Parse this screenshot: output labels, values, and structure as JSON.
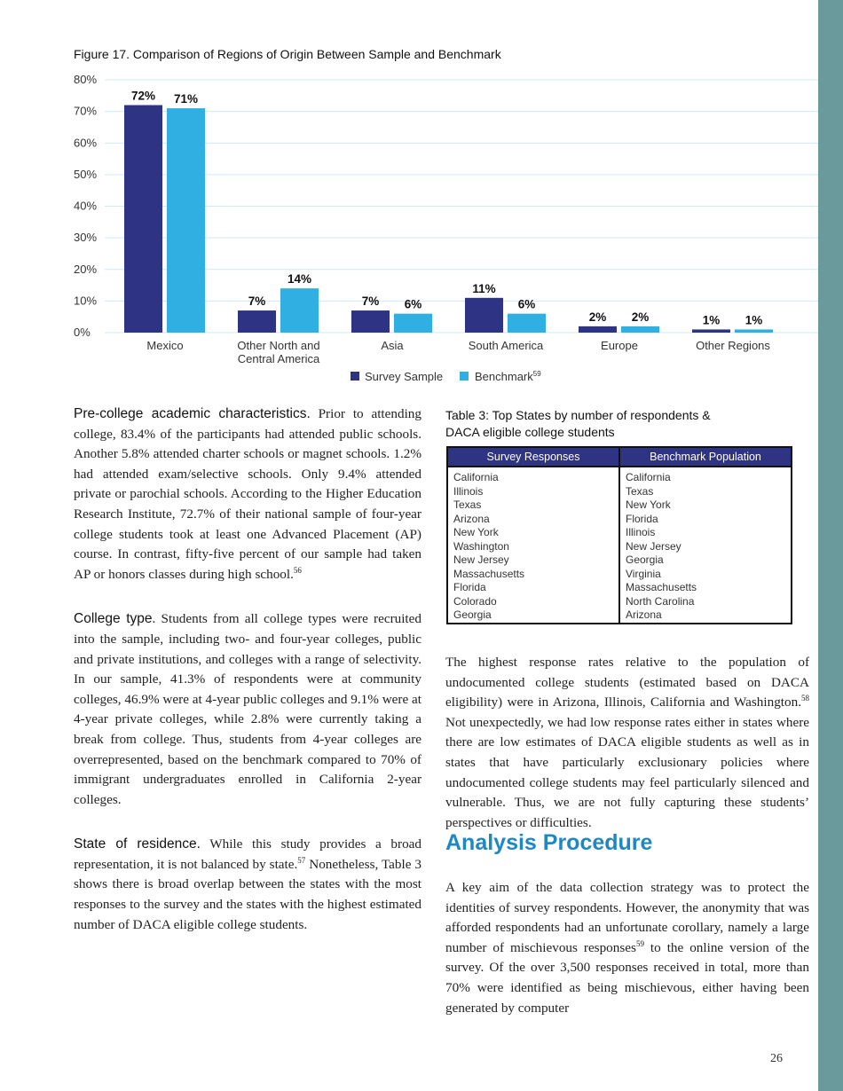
{
  "figure_title": "Figure 17. Comparison of Regions of Origin Between Sample and Benchmark",
  "chart_data": {
    "type": "bar",
    "title": "Figure 17. Comparison of Regions of Origin Between Sample and Benchmark",
    "categories": [
      "Mexico",
      "Other North and Central America",
      "Asia",
      "South America",
      "Europe",
      "Other Regions"
    ],
    "category_lines": [
      [
        "Mexico"
      ],
      [
        "Other North and",
        "Central America"
      ],
      [
        "Asia"
      ],
      [
        "South America"
      ],
      [
        "Europe"
      ],
      [
        "Other Regions"
      ]
    ],
    "series": [
      {
        "name": "Survey Sample",
        "values": [
          72,
          7,
          7,
          11,
          2,
          1
        ],
        "labels": [
          "72%",
          "7%",
          "7%",
          "11%",
          "2%",
          "1%"
        ],
        "color": "#2e3383"
      },
      {
        "name": "Benchmark",
        "name_sup": "59",
        "values": [
          71,
          14,
          6,
          6,
          2,
          1
        ],
        "labels": [
          "71%",
          "14%",
          "6%",
          "6%",
          "2%",
          "1%"
        ],
        "color": "#30b0e2"
      }
    ],
    "yticks": [
      "0%",
      "10%",
      "20%",
      "30%",
      "40%",
      "50%",
      "60%",
      "70%",
      "80%"
    ],
    "ylim": [
      0,
      80
    ],
    "grid": true,
    "legend": "bottom"
  },
  "left": {
    "p1": {
      "lead": "Pre-college academic characteristics.",
      "text": " Prior to attending college, 83.4% of the participants had attended public schools. Another 5.8% attended charter schools or magnet schools. 1.2% had attended exam/selective schools. Only 9.4% attended private or parochial schools. According to the Higher Education Research Institute, 72.7% of their national sample of four-year college students took at least one Advanced Placement (AP) course. In contrast, fifty-five percent of our sample had taken AP or honors classes during high school.",
      "sup": "56"
    },
    "p2": {
      "lead": "College type",
      "text": ". Students from all college types were recruited into the sample, including two- and four-year colleges, public and private institutions, and colleges with a range of selectivity. In our sample, 41.3% of respondents were at community colleges, 46.9% were at 4-year public colleges and 9.1% were at 4-year private colleges, while 2.8% were currently taking a break from college. Thus, students from 4-year colleges are overrepresented, based on the benchmark compared to 70% of immigrant undergraduates enrolled in California 2-year colleges."
    },
    "p3": {
      "lead": "State of residence.",
      "text1": " While this study provides a broad representation, it is not balanced by state.",
      "sup": "57",
      "text2": " Nonetheless, Table 3 shows there is broad overlap between the states with the most responses to the survey and the states with the highest estimated number of DACA eligible college students."
    }
  },
  "table": {
    "title_line1": "Table 3: Top States by number of respondents &",
    "title_line2": "DACA eligible college students",
    "headers": [
      "Survey Responses",
      "Benchmark Population"
    ],
    "survey": [
      "California",
      "Illinois",
      "Texas",
      "Arizona",
      "New York",
      "Washington",
      "New Jersey",
      "Massachusetts",
      "Florida",
      "Colorado",
      "Georgia"
    ],
    "benchmark": [
      "California",
      "Texas",
      "New York",
      "Florida",
      "Illinois",
      "New Jersey",
      "Georgia",
      "Virginia",
      "Massachusetts",
      "North Carolina",
      "Arizona"
    ]
  },
  "right": {
    "p1": {
      "text1": "The highest response rates relative to the population of undocumented college students (estimated based on DACA eligibility) were in Arizona, Illinois, California and Washington.",
      "sup": "58",
      "text2": " Not unexpectedly, we had low response rates either in states where there are low estimates of DACA eligible students as well as in states that have particularly exclusionary policies where undocumented college students may feel particularly silenced and vulnerable. Thus, we are not fully capturing these students’ perspectives or difficulties."
    },
    "heading": "Analysis Procedure",
    "p2": {
      "text1": "A key aim of the data collection strategy was to protect the identities of survey respondents. However, the anonymity that was afforded respondents had an unfortunate corollary, namely a large number of mischievous responses",
      "sup": "59",
      "text2": " to the online version of the survey. Of the over 3,500 responses received in total, more than 70% were identified as being mischievous, either having been generated by computer"
    }
  },
  "page_number": "26",
  "colors": {
    "sidebar": "#6a9a9c",
    "heading": "#1e88c2",
    "table_header": "#2e3383"
  }
}
